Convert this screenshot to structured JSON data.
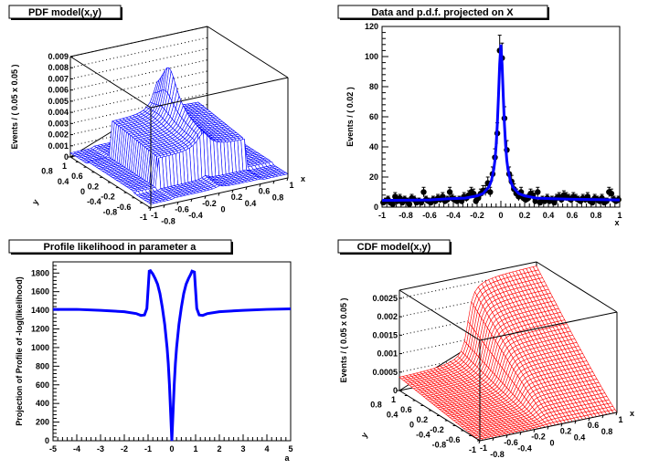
{
  "chart_data": [
    {
      "type": "surface",
      "title": "PDF model(x,y)",
      "xlabel": "x",
      "ylabel": "y",
      "zlabel": "Events / ( 0.05 x 0.05 )",
      "xlim": [
        -1,
        1
      ],
      "ylim": [
        -1,
        1
      ],
      "zlim": [
        0,
        0.009
      ],
      "xticks": [
        "-1",
        "-0.8",
        "-0.6",
        "-0.4",
        "-0.2",
        "0",
        "0.2",
        "0.4",
        "0.6",
        "0.8",
        "1"
      ],
      "yticks": [
        "-1",
        "-0.8",
        "-0.6",
        "-0.4",
        "-0.2",
        "0",
        "0.2",
        "0.4",
        "0.6",
        "0.8",
        "1"
      ],
      "zticks": [
        "0",
        "0.001",
        "0.002",
        "0.003",
        "0.004",
        "0.005",
        "0.006",
        "0.007",
        "0.008",
        "0.009"
      ],
      "color": "#0000ff",
      "grid": true
    },
    {
      "type": "scatter",
      "title": "Data and p.d.f. projected on X",
      "xlabel": "x",
      "ylabel": "Events / ( 0.02 )",
      "xlim": [
        -1,
        1
      ],
      "ylim": [
        0,
        120
      ],
      "xticks": [
        "-1",
        "-0.8",
        "-0.6",
        "-0.4",
        "-0.2",
        "0",
        "0.2",
        "0.4",
        "0.6",
        "0.8",
        "1"
      ],
      "yticks": [
        "0",
        "20",
        "40",
        "60",
        "80",
        "100",
        "120"
      ],
      "bin_width": 0.02,
      "values": [
        3,
        4,
        5,
        3,
        2,
        7,
        4,
        6,
        3,
        5,
        4,
        2,
        6,
        5,
        3,
        4,
        3,
        10,
        5,
        4,
        3,
        5,
        4,
        6,
        5,
        7,
        4,
        5,
        10,
        6,
        5,
        4,
        5,
        4,
        7,
        6,
        8,
        10,
        9,
        4,
        6,
        9,
        11,
        11,
        16,
        10,
        22,
        33,
        49,
        104,
        99,
        59,
        38,
        22,
        17,
        12,
        9,
        7,
        10,
        6,
        5,
        6,
        9,
        8,
        4,
        10,
        3,
        5,
        4,
        6,
        4,
        5,
        3,
        6,
        7,
        5,
        8,
        7,
        6,
        5,
        7,
        6,
        5,
        4,
        6,
        5,
        7,
        4,
        3,
        6,
        5,
        4,
        6,
        3,
        4,
        10,
        9,
        5,
        4,
        5
      ],
      "marker_color": "#000000",
      "curve": {
        "color": "#0000ff",
        "x": [
          -1,
          -0.8,
          -0.6,
          -0.45,
          -0.3,
          -0.2,
          -0.15,
          -0.1,
          -0.08,
          -0.06,
          -0.05,
          -0.04,
          -0.03,
          -0.02,
          -0.01,
          0,
          0.01,
          0.02,
          0.03,
          0.04,
          0.05,
          0.06,
          0.08,
          0.1,
          0.15,
          0.2,
          0.3,
          0.45,
          0.6,
          0.8,
          1
        ],
        "y": [
          4.5,
          4.6,
          4.8,
          5.5,
          6,
          7.5,
          9,
          13.5,
          17.5,
          25,
          31,
          41,
          55,
          74,
          95,
          108,
          95,
          74,
          55,
          41,
          31,
          25,
          17.5,
          13.5,
          9,
          7.5,
          6,
          5.5,
          5.2,
          5,
          4.8
        ]
      }
    },
    {
      "type": "line",
      "title": "Profile likelihood in parameter a",
      "xlabel": "a",
      "ylabel": "Projection of Profile of -log(likelihood)",
      "xlim": [
        -5,
        5
      ],
      "ylim": [
        0,
        1920
      ],
      "xticks": [
        "-5",
        "-4",
        "-3",
        "-2",
        "-1",
        "0",
        "1",
        "2",
        "3",
        "4",
        "5"
      ],
      "yticks": [
        "0",
        "200",
        "400",
        "600",
        "800",
        "1000",
        "1200",
        "1400",
        "1600",
        "1800"
      ],
      "color": "#0000ff",
      "x": [
        -5,
        -4,
        -3,
        -2,
        -1.5,
        -1.3,
        -1.15,
        -1.05,
        -0.95,
        -0.9,
        -0.8,
        -0.7,
        -0.6,
        -0.5,
        -0.4,
        -0.3,
        -0.2,
        -0.15,
        -0.1,
        -0.05,
        0,
        0.05,
        0.1,
        0.15,
        0.2,
        0.3,
        0.4,
        0.5,
        0.6,
        0.7,
        0.8,
        0.85,
        0.95,
        1.05,
        1.15,
        1.3,
        1.5,
        2,
        3,
        4,
        5
      ],
      "y": [
        1410,
        1410,
        1400,
        1385,
        1365,
        1345,
        1350,
        1420,
        1820,
        1825,
        1790,
        1740,
        1680,
        1580,
        1430,
        1250,
        1000,
        830,
        600,
        300,
        0,
        300,
        600,
        830,
        1000,
        1250,
        1430,
        1580,
        1680,
        1740,
        1790,
        1820,
        1810,
        1420,
        1350,
        1345,
        1365,
        1385,
        1400,
        1410,
        1415
      ]
    },
    {
      "type": "surface",
      "title": "CDF model(x,y)",
      "xlabel": "x",
      "ylabel": "y",
      "zlabel": "Events / ( 0.05 x 0.05 )",
      "xlim": [
        -1,
        1
      ],
      "ylim": [
        -1,
        1
      ],
      "zlim": [
        0,
        0.00272
      ],
      "xticks": [
        "-1",
        "-0.8",
        "-0.6",
        "-0.4",
        "-0.2",
        "0",
        "0.2",
        "0.4",
        "0.6",
        "0.8",
        "1"
      ],
      "yticks": [
        "-1",
        "-0.8",
        "-0.6",
        "-0.4",
        "-0.2",
        "0",
        "0.2",
        "0.4",
        "0.6",
        "0.8",
        "1"
      ],
      "zticks": [
        "0",
        "0.0005",
        "0.001",
        "0.0015",
        "0.002",
        "0.0025"
      ],
      "color": "#ff0000",
      "grid": true
    }
  ]
}
